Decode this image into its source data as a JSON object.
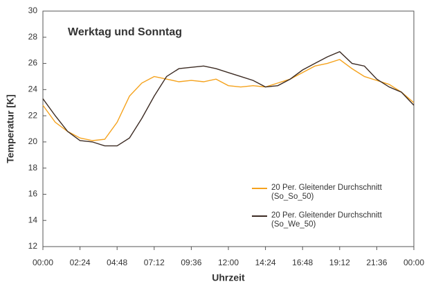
{
  "chart_data": {
    "type": "line",
    "title": "Werktag und Sonntag",
    "x_label": "Uhrzeit",
    "y_label": "Temperatur [K]",
    "x": [
      0,
      48,
      96,
      144,
      192,
      240,
      288,
      336,
      384,
      432,
      480,
      528,
      576,
      624,
      672,
      720,
      768,
      816,
      864,
      912,
      960,
      1008,
      1056,
      1104,
      1152,
      1200,
      1248,
      1296,
      1344,
      1392,
      1440
    ],
    "series": [
      {
        "name": "20 Per. Gleitender Durchschnitt\n(So_So_50)",
        "color": "#f5a21c",
        "values": [
          22.8,
          21.5,
          20.8,
          20.3,
          20.1,
          20.2,
          21.5,
          23.5,
          24.5,
          25.0,
          24.8,
          24.6,
          24.7,
          24.6,
          24.8,
          24.3,
          24.2,
          24.3,
          24.2,
          24.5,
          24.8,
          25.3,
          25.8,
          26.0,
          26.3,
          25.6,
          25.0,
          24.7,
          24.4,
          23.8,
          23.0
        ]
      },
      {
        "name": "20 Per. Gleitender Durchschnitt\n(So_We_50)",
        "color": "#3b2a22",
        "values": [
          23.3,
          22.0,
          20.8,
          20.1,
          20.0,
          19.7,
          19.7,
          20.3,
          21.8,
          23.5,
          25.0,
          25.6,
          25.7,
          25.8,
          25.6,
          25.3,
          25.0,
          24.7,
          24.2,
          24.3,
          24.8,
          25.5,
          26.0,
          26.5,
          26.9,
          26.0,
          25.8,
          24.8,
          24.2,
          23.8,
          22.8
        ]
      }
    ],
    "xlim": [
      0,
      1440
    ],
    "xticks": [
      {
        "value": 0,
        "label": "00:00"
      },
      {
        "value": 144,
        "label": "02:24"
      },
      {
        "value": 288,
        "label": "04:48"
      },
      {
        "value": 432,
        "label": "07:12"
      },
      {
        "value": 576,
        "label": "09:36"
      },
      {
        "value": 720,
        "label": "12:00"
      },
      {
        "value": 864,
        "label": "14:24"
      },
      {
        "value": 1008,
        "label": "16:48"
      },
      {
        "value": 1152,
        "label": "19:12"
      },
      {
        "value": 1296,
        "label": "21:36"
      },
      {
        "value": 1440,
        "label": "00:00"
      }
    ],
    "ylim": [
      12,
      30
    ],
    "yticks": [
      12,
      14,
      16,
      18,
      20,
      22,
      24,
      26,
      28,
      30
    ]
  }
}
